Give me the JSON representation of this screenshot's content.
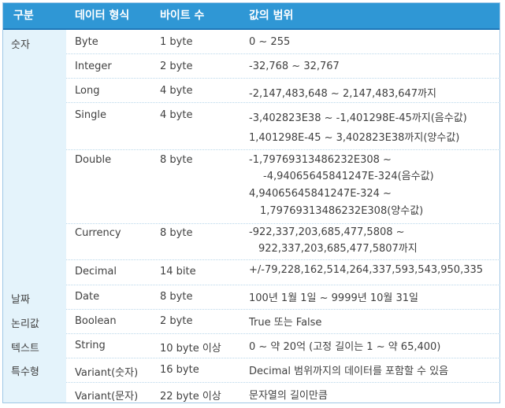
{
  "headers": {
    "category": "구분",
    "type": "데이터 형식",
    "bytes": "바이트 수",
    "range": "값의 범위"
  },
  "rows": [
    {
      "category": "숫자",
      "type": "Byte",
      "bytes": "1 byte",
      "range": [
        "0 ~ 255"
      ]
    },
    {
      "category": "",
      "type": "Integer",
      "bytes": "2 byte",
      "range": [
        "-32,768 ~ 32,767"
      ]
    },
    {
      "category": "",
      "type": "Long",
      "bytes": "4 byte",
      "range": [
        "-2,147,483,648 ~ 2,147,483,647까지"
      ]
    },
    {
      "category": "",
      "type": "Single",
      "bytes": "4 byte",
      "range": [
        "-3,402823E38 ~ -1,401298E-45까지(음수값)",
        "1,401298E-45 ~ 3,402823E38까지(양수값)"
      ]
    },
    {
      "category": "",
      "type": "Double",
      "bytes": "8 byte",
      "range": [
        "-1,79769313486232E308 ~",
        "-4,94065645841247E-324(음수값)",
        "4,94065645841247E-324 ~",
        "1,79769313486232E308(양수값)"
      ]
    },
    {
      "category": "",
      "type": "Currency",
      "bytes": "8 byte",
      "range": [
        "-922,337,203,685,477,5808 ~",
        "922,337,203,685,477,5807까지"
      ]
    },
    {
      "category": "",
      "type": "Decimal",
      "bytes": "14 bite",
      "range": [
        "+/-79,228,162,514,264,337,593,543,950,335"
      ]
    },
    {
      "category": "날짜",
      "type": "Date",
      "bytes": "8 byte",
      "range": [
        "100년 1월 1일 ~ 9999년 10월 31일"
      ]
    },
    {
      "category": "논리값",
      "type": "Boolean",
      "bytes": "2 byte",
      "range": [
        "True 또는 False"
      ]
    },
    {
      "category": "텍스트",
      "type": "String",
      "bytes": "10 byte 이상",
      "range": [
        "0 ~ 약 20억 (고정 길이는 1 ~ 약 65,400)"
      ]
    },
    {
      "category": "특수형",
      "type": "Variant(숫자)",
      "bytes": "16 byte",
      "range": [
        "Decimal 범위까지의 데이터를 포함할 수 있음"
      ]
    },
    {
      "category": "",
      "type": "Variant(문자)",
      "bytes": "22 byte 이상",
      "range": [
        "문자열의 길이만큼"
      ]
    }
  ]
}
